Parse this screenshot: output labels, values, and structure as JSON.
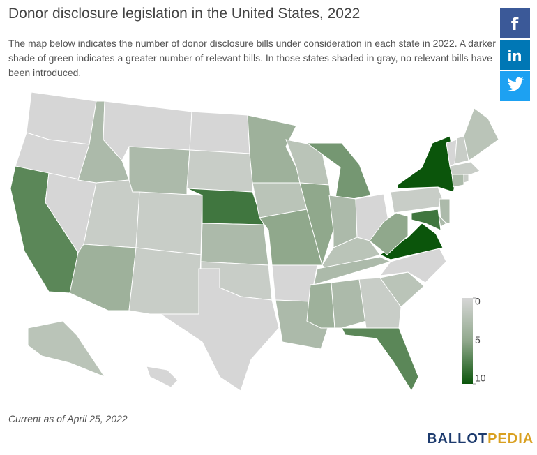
{
  "title": "Donor disclosure legislation in the United States, 2022",
  "description": "The map below indicates the number of donor disclosure bills under consideration in each state in 2022. A darker shade of green indicates a greater number of relevant bills. In those states shaded in gray, no relevant bills have been introduced.",
  "chart_data": {
    "type": "choropleth",
    "values": [
      0,
      0,
      7,
      0,
      3,
      0,
      3,
      1,
      4,
      1,
      1,
      0,
      1,
      8,
      3,
      1,
      0,
      4,
      2,
      5,
      0,
      3,
      2,
      5,
      6,
      3,
      0,
      2,
      3,
      4,
      3,
      1,
      7,
      2,
      0,
      10,
      5,
      1,
      10,
      3,
      3,
      8,
      3,
      1,
      1,
      0,
      1,
      2,
      2,
      0
    ],
    "legend": {
      "ticks": [
        0,
        5,
        10
      ],
      "colors": [
        "#d6d6d6",
        "#90a88c",
        "#0b550b"
      ]
    }
  },
  "footer": "Current as of April 25, 2022",
  "logo": {
    "first": "BALLOT",
    "second": "PEDIA"
  }
}
